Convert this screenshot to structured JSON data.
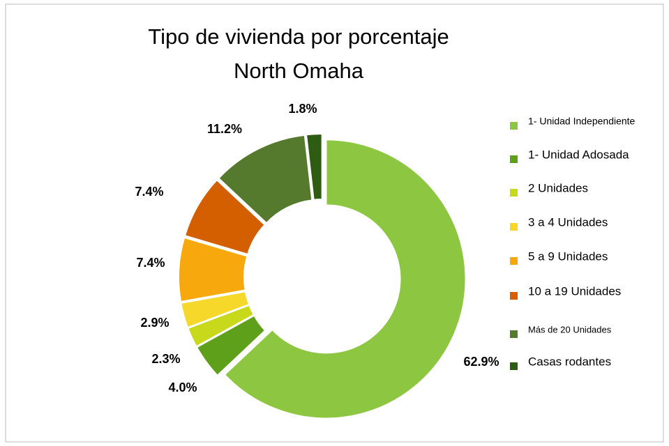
{
  "chart_data": {
    "type": "donut",
    "title": "Tipo de vivienda por porcentaje",
    "subtitle": "North Omaha",
    "categories": [
      "1- Unidad Independiente",
      "1- Unidad Adosada",
      "2 Unidades",
      "3 a 4 Unidades",
      "5 a 9 Unidades",
      "10 a 19 Unidades",
      "Más de 20 Unidades",
      "Casas rodantes"
    ],
    "values": [
      62.9,
      4.0,
      2.3,
      2.9,
      7.4,
      7.4,
      11.2,
      1.8
    ],
    "value_labels": [
      "62.9%",
      "4.0%",
      "2.3%",
      "2.9%",
      "7.4%",
      "7.4%",
      "11.2%",
      "1.8%"
    ],
    "colors": [
      "#8dc641",
      "#5fa01a",
      "#c8d81a",
      "#f5d82a",
      "#f7a80d",
      "#d45f00",
      "#557a2e",
      "#2e5c12"
    ],
    "legend": "right"
  }
}
